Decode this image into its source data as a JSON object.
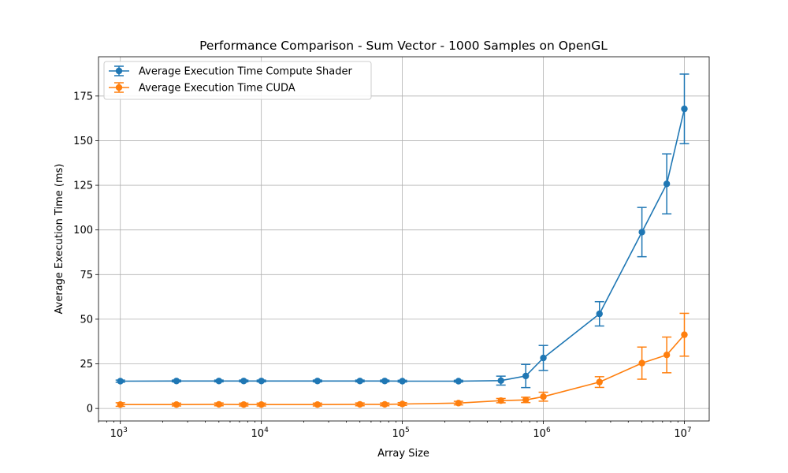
{
  "chart_data": {
    "type": "line",
    "title": "Performance Comparison - Sum Vector - 1000 Samples on OpenGL",
    "xlabel": "Array Size",
    "ylabel": "Average Execution Time (ms)",
    "xscale": "log",
    "xlim": [
      700,
      15000000
    ],
    "ylim": [
      -7,
      197
    ],
    "yticks": [
      0,
      25,
      50,
      75,
      100,
      125,
      150,
      175
    ],
    "xticks": [
      {
        "value": 1000,
        "base": "10",
        "exp": "3"
      },
      {
        "value": 10000,
        "base": "10",
        "exp": "4"
      },
      {
        "value": 100000,
        "base": "10",
        "exp": "5"
      },
      {
        "value": 1000000,
        "base": "10",
        "exp": "6"
      },
      {
        "value": 10000000,
        "base": "10",
        "exp": "7"
      }
    ],
    "grid": true,
    "legend_position": "top-left",
    "x": [
      1000,
      2500,
      5000,
      7500,
      10000,
      25000,
      50000,
      75000,
      100000,
      250000,
      500000,
      750000,
      1000000,
      2500000,
      5000000,
      7500000,
      10000000
    ],
    "series": [
      {
        "name": "Average Execution Time Compute Shader",
        "color": "#1f77b4",
        "values": [
          15.3,
          15.4,
          15.4,
          15.4,
          15.4,
          15.4,
          15.4,
          15.4,
          15.3,
          15.3,
          15.6,
          18.2,
          28.3,
          53.0,
          98.8,
          125.8,
          167.8
        ],
        "errors": [
          0.6,
          0.5,
          0.5,
          0.5,
          0.5,
          0.5,
          0.5,
          0.5,
          0.5,
          0.5,
          2.5,
          6.5,
          7.0,
          6.8,
          13.8,
          16.8,
          19.5
        ]
      },
      {
        "name": "Average Execution Time CUDA",
        "color": "#ff7f0e",
        "values": [
          2.2,
          2.2,
          2.3,
          2.2,
          2.2,
          2.2,
          2.3,
          2.3,
          2.5,
          3.0,
          4.4,
          4.8,
          6.6,
          14.8,
          25.4,
          30.0,
          41.3
        ],
        "errors": [
          1.0,
          0.8,
          0.8,
          0.8,
          0.8,
          0.8,
          0.8,
          0.8,
          0.8,
          1.0,
          1.2,
          1.5,
          2.5,
          3.0,
          9.0,
          10.0,
          12.0
        ]
      }
    ]
  }
}
